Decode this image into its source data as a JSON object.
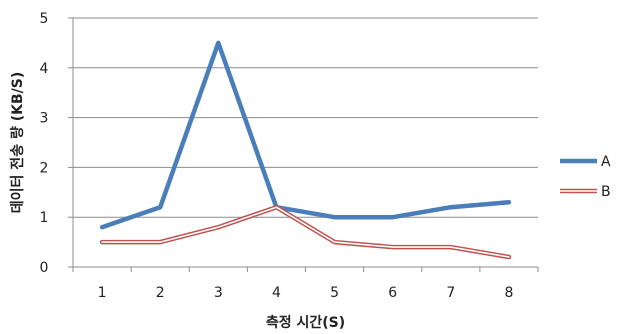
{
  "chart_data": {
    "type": "line",
    "title": "",
    "xlabel": "측정 시간(S)",
    "ylabel": "데이터 전송 량 (KB/S)",
    "categories": [
      "1",
      "2",
      "3",
      "4",
      "5",
      "6",
      "7",
      "8"
    ],
    "ylim": [
      0,
      5
    ],
    "yticks": [
      "0",
      "1",
      "2",
      "3",
      "4",
      "5"
    ],
    "grid": true,
    "legend_position": "right",
    "series": [
      {
        "name": "A",
        "values": [
          0.8,
          1.2,
          4.5,
          1.2,
          1.0,
          1.0,
          1.2,
          1.3
        ],
        "color": "#4a7ebb",
        "style": "thick"
      },
      {
        "name": "B",
        "values": [
          0.5,
          0.5,
          0.8,
          1.2,
          0.5,
          0.4,
          0.4,
          0.2
        ],
        "color": "#c0504d",
        "style": "double"
      }
    ]
  }
}
